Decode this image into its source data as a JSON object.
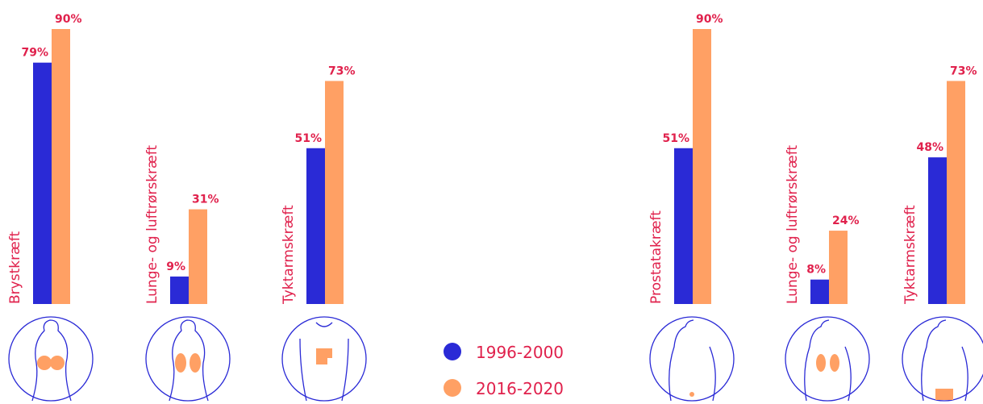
{
  "chart_data": [
    {
      "type": "bar",
      "categories": [
        "Brystkræft",
        "Lunge- og luftrørskræft",
        "Tyktarmskræft"
      ],
      "series": [
        {
          "name": "1996-2000",
          "color": "#2a2ad6",
          "values": [
            79,
            9,
            51
          ],
          "value_labels": [
            "79%",
            "9%",
            "51%"
          ]
        },
        {
          "name": "2016-2020",
          "color": "#ffa064",
          "values": [
            90,
            31,
            73
          ],
          "value_labels": [
            "90%",
            "31%",
            "73%"
          ]
        }
      ]
    },
    {
      "type": "bar",
      "categories": [
        "Prostatakræft",
        "Lunge- og luftrørskræft",
        "Tyktarmskræft"
      ],
      "series": [
        {
          "name": "1996-2000",
          "color": "#2a2ad6",
          "values": [
            51,
            8,
            48
          ],
          "value_labels": [
            "51%",
            "8%",
            "48%"
          ]
        },
        {
          "name": "2016-2020",
          "color": "#ffa064",
          "values": [
            90,
            24,
            73
          ],
          "value_labels": [
            "90%",
            "24%",
            "73%"
          ]
        }
      ]
    }
  ]
}
